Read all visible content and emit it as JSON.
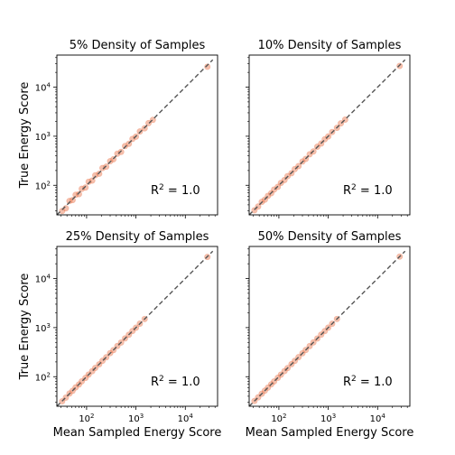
{
  "chart_data": [
    {
      "type": "scatter",
      "title": "5% Density of Samples",
      "xlabel": "",
      "ylabel": "True Energy Score",
      "xscale": "log",
      "yscale": "log",
      "xlim": [
        25,
        45000
      ],
      "ylim": [
        25,
        45000
      ],
      "x_tick_labels": [],
      "y_tick_labels": [
        "10^2",
        "10^3",
        "10^4"
      ],
      "annotation": {
        "base": "R",
        "sup": "2",
        "rest": " = 1.0"
      },
      "reference_line": "y = x (dashed gray)",
      "point_color": "#e8744a",
      "x": [
        32,
        38,
        45,
        52,
        60,
        70,
        80,
        95,
        110,
        130,
        150,
        180,
        210,
        250,
        300,
        350,
        420,
        500,
        600,
        720,
        850,
        1000,
        1200,
        1500,
        1800,
        2200,
        28000
      ],
      "y": [
        30,
        34,
        48,
        50,
        64,
        66,
        85,
        90,
        118,
        125,
        160,
        172,
        225,
        240,
        310,
        340,
        440,
        480,
        630,
        700,
        880,
        980,
        1250,
        1450,
        1850,
        2150,
        26000
      ]
    },
    {
      "type": "scatter",
      "title": "10% Density of Samples",
      "xlabel": "",
      "ylabel": "",
      "xscale": "log",
      "yscale": "log",
      "xlim": [
        25,
        45000
      ],
      "ylim": [
        25,
        45000
      ],
      "x_tick_labels": [],
      "y_tick_labels": [],
      "annotation": {
        "base": "R",
        "sup": "2",
        "rest": " = 1.0"
      },
      "reference_line": "y = x (dashed gray)",
      "point_color": "#e8744a",
      "x": [
        32,
        38,
        45,
        52,
        60,
        70,
        80,
        95,
        110,
        130,
        150,
        180,
        210,
        250,
        300,
        350,
        420,
        500,
        600,
        720,
        850,
        1000,
        1200,
        1500,
        1800,
        2200,
        28000
      ],
      "y": [
        31,
        37,
        46,
        51,
        61,
        69,
        82,
        93,
        112,
        128,
        154,
        176,
        214,
        246,
        305,
        345,
        428,
        490,
        612,
        710,
        866,
        990,
        1220,
        1480,
        1830,
        2180,
        27000
      ]
    },
    {
      "type": "scatter",
      "title": "25% Density of Samples",
      "xlabel": "Mean Sampled Energy Score",
      "ylabel": "True Energy Score",
      "xscale": "log",
      "yscale": "log",
      "xlim": [
        25,
        45000
      ],
      "ylim": [
        25,
        45000
      ],
      "x_tick_labels": [
        "10^2",
        "10^3",
        "10^4"
      ],
      "y_tick_labels": [
        "10^2",
        "10^3",
        "10^4"
      ],
      "annotation": {
        "base": "R",
        "sup": "2",
        "rest": " = 1.0"
      },
      "reference_line": "y = x (dashed gray)",
      "point_color": "#e8744a",
      "x": [
        32,
        38,
        45,
        52,
        60,
        70,
        80,
        95,
        110,
        130,
        150,
        180,
        210,
        250,
        300,
        350,
        420,
        500,
        600,
        720,
        850,
        1000,
        1200,
        1500,
        28000
      ],
      "y": [
        31.5,
        37.5,
        45.5,
        51.5,
        60.5,
        69.5,
        80.5,
        94.5,
        110.5,
        129.5,
        151,
        179,
        211,
        249,
        302,
        348,
        422,
        497,
        603,
        716,
        853,
        996,
        1205,
        1495,
        27500
      ]
    },
    {
      "type": "scatter",
      "title": "50% Density of Samples",
      "xlabel": "Mean Sampled Energy Score",
      "ylabel": "",
      "xscale": "log",
      "yscale": "log",
      "xlim": [
        25,
        45000
      ],
      "ylim": [
        25,
        45000
      ],
      "x_tick_labels": [
        "10^2",
        "10^3",
        "10^4"
      ],
      "y_tick_labels": [],
      "annotation": {
        "base": "R",
        "sup": "2",
        "rest": " = 1.0"
      },
      "reference_line": "y = x (dashed gray)",
      "point_color": "#e8744a",
      "x": [
        32,
        38,
        45,
        52,
        60,
        70,
        80,
        95,
        110,
        130,
        150,
        180,
        210,
        250,
        300,
        350,
        420,
        500,
        600,
        720,
        850,
        1000,
        1200,
        1500,
        28000
      ],
      "y": [
        32,
        38,
        45,
        52,
        60,
        70,
        80,
        95,
        110,
        130,
        150,
        180,
        210,
        250,
        300,
        350,
        420,
        500,
        600,
        720,
        850,
        1000,
        1200,
        1500,
        28000
      ]
    }
  ]
}
